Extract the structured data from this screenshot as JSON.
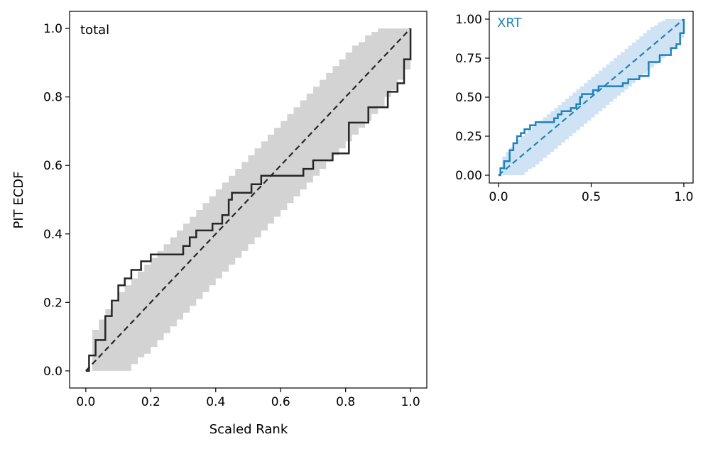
{
  "colors": {
    "total_line": "#262626",
    "total_band": "#d3d3d3",
    "xrt_line": "#1f83b8",
    "xrt_band": "#cfe3f4",
    "xrt_label": "#1f83b8"
  },
  "chart_data": [
    {
      "type": "line",
      "title": "total",
      "xlabel": "Scaled Rank",
      "ylabel": "PIT ECDF",
      "xlim": [
        -0.05,
        1.05
      ],
      "ylim": [
        -0.05,
        1.05
      ],
      "xticks": [
        0.0,
        0.2,
        0.4,
        0.6,
        0.8,
        1.0
      ],
      "xtick_labels": [
        "0.0",
        "0.2",
        "0.4",
        "0.6",
        "0.8",
        "1.0"
      ],
      "yticks": [
        0.0,
        0.2,
        0.4,
        0.6,
        0.8,
        1.0
      ],
      "ytick_labels": [
        "0.0",
        "0.2",
        "0.4",
        "0.6",
        "0.8",
        "1.0"
      ],
      "reference": {
        "name": "uniform",
        "x": [
          0,
          1
        ],
        "y": [
          0,
          1
        ]
      },
      "band": {
        "x": [
          0.0,
          0.02,
          0.04,
          0.06,
          0.08,
          0.1,
          0.12,
          0.14,
          0.16,
          0.18,
          0.2,
          0.22,
          0.24,
          0.26,
          0.28,
          0.3,
          0.32,
          0.34,
          0.36,
          0.38,
          0.4,
          0.42,
          0.44,
          0.46,
          0.48,
          0.5,
          0.52,
          0.54,
          0.56,
          0.58,
          0.6,
          0.62,
          0.64,
          0.66,
          0.68,
          0.7,
          0.72,
          0.74,
          0.76,
          0.78,
          0.8,
          0.82,
          0.84,
          0.86,
          0.88,
          0.9,
          0.92,
          0.94,
          0.96,
          0.98,
          1.0
        ],
        "lower": [
          0.0,
          0.0,
          0.0,
          0.0,
          0.0,
          0.0,
          0.0,
          0.02,
          0.04,
          0.05,
          0.07,
          0.09,
          0.11,
          0.13,
          0.15,
          0.17,
          0.19,
          0.21,
          0.23,
          0.25,
          0.27,
          0.29,
          0.31,
          0.33,
          0.35,
          0.37,
          0.39,
          0.41,
          0.43,
          0.45,
          0.47,
          0.49,
          0.51,
          0.53,
          0.55,
          0.57,
          0.59,
          0.61,
          0.63,
          0.65,
          0.67,
          0.69,
          0.71,
          0.73,
          0.75,
          0.77,
          0.8,
          0.82,
          0.85,
          0.88,
          1.0
        ],
        "upper": [
          0.0,
          0.12,
          0.15,
          0.18,
          0.2,
          0.23,
          0.25,
          0.27,
          0.29,
          0.31,
          0.33,
          0.35,
          0.37,
          0.39,
          0.41,
          0.43,
          0.45,
          0.47,
          0.49,
          0.51,
          0.53,
          0.55,
          0.57,
          0.59,
          0.61,
          0.63,
          0.65,
          0.67,
          0.69,
          0.71,
          0.73,
          0.75,
          0.77,
          0.79,
          0.81,
          0.83,
          0.85,
          0.87,
          0.89,
          0.91,
          0.93,
          0.95,
          0.96,
          0.98,
          0.99,
          1.0,
          1.0,
          1.0,
          1.0,
          1.0,
          1.0
        ]
      },
      "ecdf": {
        "name": "total",
        "x": [
          0.0,
          0.01,
          0.03,
          0.06,
          0.08,
          0.1,
          0.12,
          0.14,
          0.17,
          0.2,
          0.22,
          0.3,
          0.32,
          0.34,
          0.39,
          0.42,
          0.44,
          0.45,
          0.51,
          0.54,
          0.56,
          0.67,
          0.7,
          0.76,
          0.81,
          0.87,
          0.93,
          0.96,
          0.98,
          1.0
        ],
        "y": [
          0.0,
          0.045,
          0.09,
          0.16,
          0.205,
          0.25,
          0.27,
          0.295,
          0.32,
          0.34,
          0.34,
          0.365,
          0.39,
          0.41,
          0.43,
          0.455,
          0.5,
          0.52,
          0.545,
          0.57,
          0.57,
          0.59,
          0.615,
          0.635,
          0.725,
          0.77,
          0.815,
          0.84,
          0.91,
          1.0
        ]
      }
    },
    {
      "type": "line",
      "title": "XRT",
      "xlabel": "",
      "ylabel": "",
      "xlim": [
        -0.05,
        1.05
      ],
      "ylim": [
        -0.05,
        1.05
      ],
      "xticks": [
        0.0,
        0.5,
        1.0
      ],
      "xtick_labels": [
        "0.0",
        "0.5",
        "1.0"
      ],
      "yticks": [
        0.0,
        0.25,
        0.5,
        0.75,
        1.0
      ],
      "ytick_labels": [
        "0.00",
        "0.25",
        "0.50",
        "0.75",
        "1.00"
      ],
      "reference": {
        "name": "uniform",
        "x": [
          0,
          1
        ],
        "y": [
          0,
          1
        ]
      },
      "band": {
        "x": [
          0.0,
          0.02,
          0.04,
          0.06,
          0.08,
          0.1,
          0.12,
          0.14,
          0.16,
          0.18,
          0.2,
          0.22,
          0.24,
          0.26,
          0.28,
          0.3,
          0.32,
          0.34,
          0.36,
          0.38,
          0.4,
          0.42,
          0.44,
          0.46,
          0.48,
          0.5,
          0.52,
          0.54,
          0.56,
          0.58,
          0.6,
          0.62,
          0.64,
          0.66,
          0.68,
          0.7,
          0.72,
          0.74,
          0.76,
          0.78,
          0.8,
          0.82,
          0.84,
          0.86,
          0.88,
          0.9,
          0.92,
          0.94,
          0.96,
          0.98,
          1.0
        ],
        "lower": [
          0.0,
          0.0,
          0.0,
          0.0,
          0.0,
          0.0,
          0.0,
          0.02,
          0.04,
          0.05,
          0.07,
          0.09,
          0.11,
          0.13,
          0.15,
          0.17,
          0.19,
          0.21,
          0.23,
          0.25,
          0.27,
          0.29,
          0.31,
          0.33,
          0.35,
          0.37,
          0.39,
          0.41,
          0.43,
          0.45,
          0.47,
          0.49,
          0.51,
          0.53,
          0.55,
          0.57,
          0.59,
          0.61,
          0.63,
          0.65,
          0.67,
          0.69,
          0.71,
          0.73,
          0.75,
          0.77,
          0.8,
          0.82,
          0.85,
          0.88,
          1.0
        ],
        "upper": [
          0.0,
          0.12,
          0.15,
          0.18,
          0.2,
          0.23,
          0.25,
          0.27,
          0.29,
          0.31,
          0.33,
          0.35,
          0.37,
          0.39,
          0.41,
          0.43,
          0.45,
          0.47,
          0.49,
          0.51,
          0.53,
          0.55,
          0.57,
          0.59,
          0.61,
          0.63,
          0.65,
          0.67,
          0.69,
          0.71,
          0.73,
          0.75,
          0.77,
          0.79,
          0.81,
          0.83,
          0.85,
          0.87,
          0.89,
          0.91,
          0.93,
          0.95,
          0.96,
          0.98,
          0.99,
          1.0,
          1.0,
          1.0,
          1.0,
          1.0,
          1.0
        ]
      },
      "ecdf": {
        "name": "XRT",
        "x": [
          0.0,
          0.01,
          0.03,
          0.06,
          0.08,
          0.1,
          0.12,
          0.14,
          0.17,
          0.2,
          0.22,
          0.3,
          0.32,
          0.34,
          0.39,
          0.42,
          0.44,
          0.45,
          0.51,
          0.54,
          0.56,
          0.67,
          0.7,
          0.76,
          0.81,
          0.87,
          0.93,
          0.96,
          0.98,
          1.0
        ],
        "y": [
          0.0,
          0.045,
          0.09,
          0.16,
          0.205,
          0.25,
          0.27,
          0.295,
          0.32,
          0.34,
          0.34,
          0.365,
          0.39,
          0.41,
          0.43,
          0.455,
          0.5,
          0.52,
          0.545,
          0.57,
          0.57,
          0.59,
          0.615,
          0.635,
          0.725,
          0.77,
          0.815,
          0.84,
          0.91,
          1.0
        ]
      }
    }
  ]
}
